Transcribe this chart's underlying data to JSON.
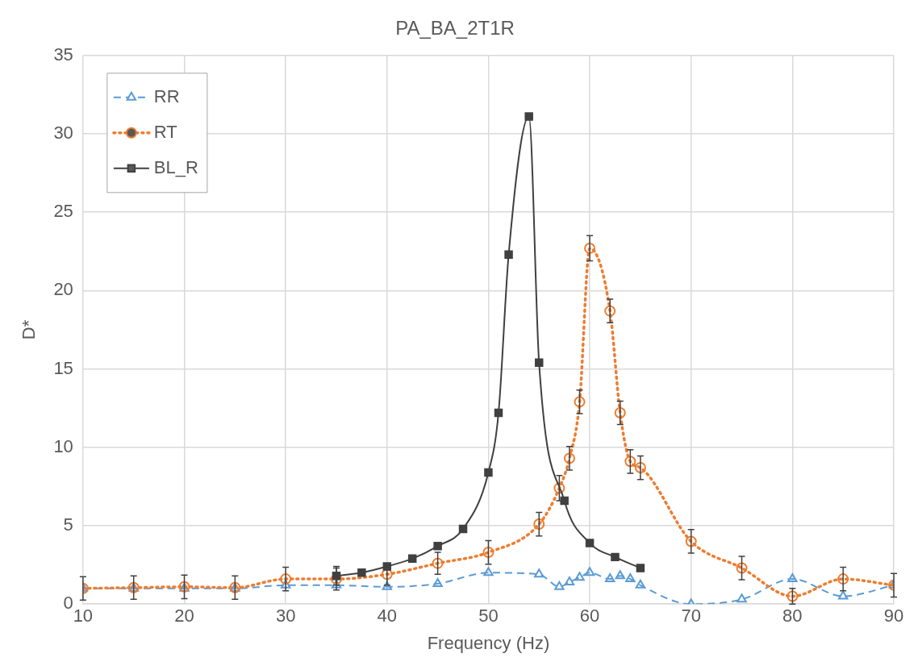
{
  "chart_data": {
    "type": "line",
    "title": "PA_BA_2T1R",
    "xlabel": "Frequency (Hz)",
    "ylabel": "D*",
    "xlim": [
      10,
      90
    ],
    "xticks": [
      10,
      20,
      30,
      40,
      50,
      60,
      70,
      80,
      90
    ],
    "ylim": [
      0,
      35
    ],
    "yticks": [
      0,
      5,
      10,
      15,
      20,
      25,
      30,
      35
    ],
    "grid": true,
    "legend": "top left",
    "series": [
      {
        "name": "RR",
        "color": "#5b9bd5",
        "marker": "triangle",
        "line_style": "dashed",
        "x": [
          10,
          15,
          20,
          25,
          30,
          35,
          40,
          45,
          50,
          55,
          57,
          58,
          59,
          60,
          62,
          63,
          64,
          65,
          70,
          75,
          80,
          85,
          90
        ],
        "values": [
          1.0,
          1.0,
          1.0,
          1.0,
          1.2,
          1.2,
          1.1,
          1.3,
          2.0,
          1.9,
          1.1,
          1.4,
          1.7,
          2.0,
          1.6,
          1.8,
          1.6,
          1.2,
          0.0,
          0.3,
          1.6,
          0.5,
          1.2
        ]
      },
      {
        "name": "RT",
        "color": "#ed7d31",
        "marker": "circle",
        "line_style": "dotted",
        "x": [
          10,
          15,
          20,
          25,
          30,
          35,
          40,
          45,
          50,
          55,
          57,
          58,
          59,
          60,
          62,
          63,
          64,
          65,
          70,
          75,
          80,
          85,
          90
        ],
        "values": [
          1.0,
          1.05,
          1.1,
          1.05,
          1.6,
          1.6,
          1.9,
          2.6,
          3.3,
          5.1,
          7.4,
          9.3,
          12.9,
          22.7,
          18.7,
          12.2,
          9.1,
          8.7,
          4.0,
          2.3,
          0.5,
          1.6,
          1.2
        ],
        "errors": [
          0.75,
          0.75,
          0.75,
          0.75,
          0.75,
          0.7,
          0.7,
          0.7,
          0.75,
          0.75,
          0.8,
          0.75,
          0.75,
          0.8,
          0.75,
          0.75,
          0.75,
          0.75,
          0.75,
          0.75,
          0.5,
          0.75,
          0.75
        ]
      },
      {
        "name": "BL_R",
        "color": "#404040",
        "marker": "square",
        "line_style": "solid",
        "x": [
          35,
          37.5,
          40,
          42.5,
          45,
          47.5,
          50,
          51,
          52,
          54,
          55,
          57.5,
          60,
          62.5,
          65
        ],
        "values": [
          1.8,
          2.0,
          2.4,
          2.9,
          3.7,
          4.8,
          8.4,
          12.2,
          22.3,
          31.1,
          15.4,
          6.6,
          3.9,
          3.0,
          2.3
        ],
        "errors": [
          0.6,
          null,
          0.2,
          null,
          null,
          null,
          null,
          null,
          null,
          null,
          null,
          null,
          null,
          null,
          null
        ]
      }
    ]
  }
}
